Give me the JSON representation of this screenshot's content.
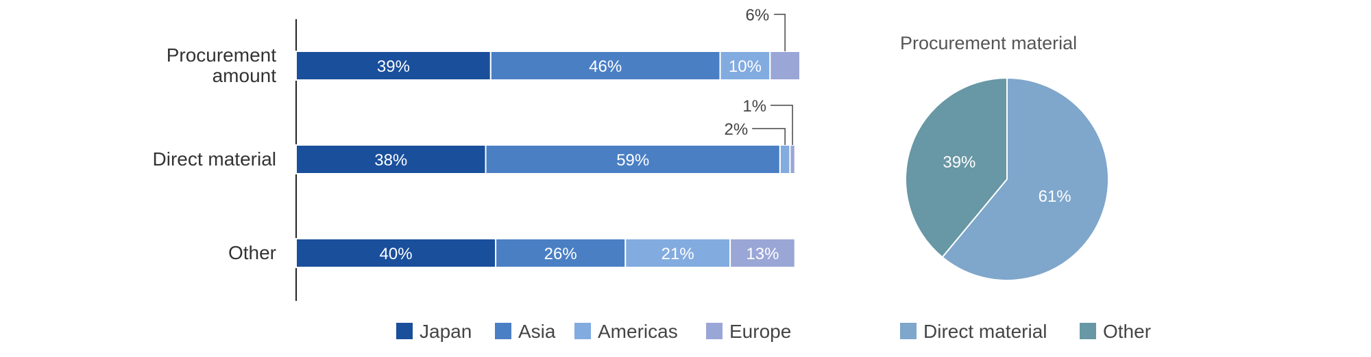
{
  "chart_data": [
    {
      "type": "bar",
      "orientation": "horizontal",
      "stacked": true,
      "categories": [
        "Procurement amount",
        "Direct material",
        "Other"
      ],
      "category_lines": [
        [
          "Procurement",
          "amount"
        ],
        [
          "Direct material"
        ],
        [
          "Other"
        ]
      ],
      "series": [
        {
          "name": "Japan",
          "values": [
            39,
            38,
            40
          ],
          "labels": [
            "39%",
            "38%",
            "40%"
          ],
          "color": "#1a4f9c"
        },
        {
          "name": "Asia",
          "values": [
            46,
            59,
            26
          ],
          "labels": [
            "46%",
            "59%",
            "26%"
          ],
          "color": "#4a7fc4"
        },
        {
          "name": "Americas",
          "values": [
            10,
            2,
            21
          ],
          "labels": [
            "10%",
            "2%",
            "21%"
          ],
          "color": "#82abe0"
        },
        {
          "name": "Europe",
          "values": [
            6,
            1,
            13
          ],
          "labels": [
            "6%",
            "1%",
            "13%"
          ],
          "color": "#9aa6d6"
        }
      ],
      "xlim": [
        0,
        101
      ],
      "grid": false,
      "legend": "bottom"
    },
    {
      "type": "pie",
      "title": "Procurement material",
      "labels": [
        "Direct material",
        "Other"
      ],
      "values": [
        61,
        39
      ],
      "value_labels": [
        "61%",
        "39%"
      ],
      "colors": [
        "#7fa6cb",
        "#6897a5"
      ],
      "legend": "bottom"
    }
  ]
}
